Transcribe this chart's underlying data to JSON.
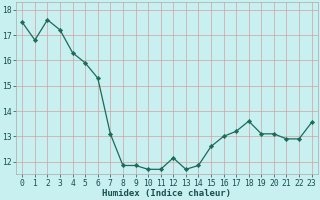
{
  "xlabel": "Humidex (Indice chaleur)",
  "ylabel": "",
  "x": [
    0,
    1,
    2,
    3,
    4,
    5,
    6,
    7,
    8,
    9,
    10,
    11,
    12,
    13,
    14,
    15,
    16,
    17,
    18,
    19,
    20,
    21,
    22,
    23
  ],
  "y": [
    17.5,
    16.8,
    17.6,
    17.2,
    16.3,
    15.9,
    15.3,
    13.1,
    11.85,
    11.85,
    11.7,
    11.7,
    12.15,
    11.7,
    11.85,
    12.6,
    13.0,
    13.2,
    13.6,
    13.1,
    13.1,
    12.9,
    12.9,
    13.55
  ],
  "line_color": "#1a6b5a",
  "marker": "D",
  "marker_size": 2.2,
  "background_color": "#c8f0f0",
  "grid_color": "#d4a0a0",
  "ylim": [
    11.5,
    18.3
  ],
  "yticks": [
    12,
    13,
    14,
    15,
    16,
    17,
    18
  ],
  "xticks": [
    0,
    1,
    2,
    3,
    4,
    5,
    6,
    7,
    8,
    9,
    10,
    11,
    12,
    13,
    14,
    15,
    16,
    17,
    18,
    19,
    20,
    21,
    22,
    23
  ],
  "tick_color": "#1a5050",
  "label_fontsize": 6.5,
  "tick_fontsize": 5.8
}
